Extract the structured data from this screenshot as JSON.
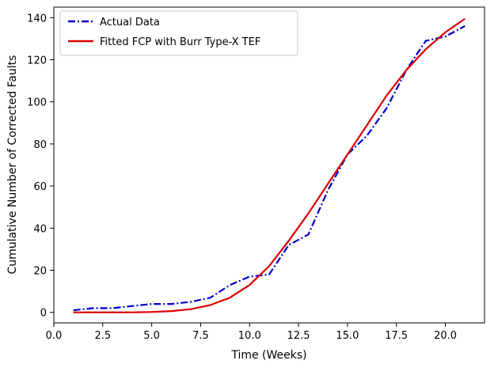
{
  "chart_data": {
    "type": "line",
    "title": "",
    "xlabel": "Time (Weeks)",
    "ylabel": "Cumulative Number of Corrected Faults",
    "xlim": [
      0.0,
      22.0
    ],
    "ylim": [
      -5,
      145
    ],
    "xticks": [
      0.0,
      2.5,
      5.0,
      7.5,
      10.0,
      12.5,
      15.0,
      17.5,
      20.0
    ],
    "xtick_labels": [
      "0.0",
      "2.5",
      "5.0",
      "7.5",
      "10.0",
      "12.5",
      "15.0",
      "17.5",
      "20.0"
    ],
    "yticks": [
      0,
      20,
      40,
      60,
      80,
      100,
      120,
      140
    ],
    "ytick_labels": [
      "0",
      "20",
      "40",
      "60",
      "80",
      "100",
      "120",
      "140"
    ],
    "grid": false,
    "legend_position": "top-left",
    "series": [
      {
        "name": "Actual Data",
        "color": "#0000cc",
        "line_style": "dash-dot",
        "x": [
          1,
          2,
          3,
          4,
          5,
          6,
          7,
          8,
          9,
          10,
          11,
          12,
          13,
          14,
          15,
          16,
          17,
          18,
          19,
          20,
          21
        ],
        "y": [
          1,
          2,
          2,
          3,
          4,
          4,
          5,
          7,
          13,
          17,
          18,
          32,
          37,
          58,
          75,
          84,
          97,
          115,
          129,
          131,
          136
        ]
      },
      {
        "name": "Fitted FCP with Burr Type-X TEF",
        "color": "#dd0000",
        "line_style": "solid",
        "x": [
          1,
          2,
          3,
          4,
          5,
          6,
          7,
          8,
          9,
          10,
          11,
          12,
          13,
          14,
          15,
          16,
          17,
          18,
          19,
          20,
          21
        ],
        "y": [
          0,
          0,
          0,
          0,
          0.2,
          0.6,
          1.5,
          3.5,
          7,
          13,
          22,
          34,
          47,
          61,
          75,
          89,
          103,
          115,
          125,
          133,
          139.5
        ]
      }
    ]
  }
}
